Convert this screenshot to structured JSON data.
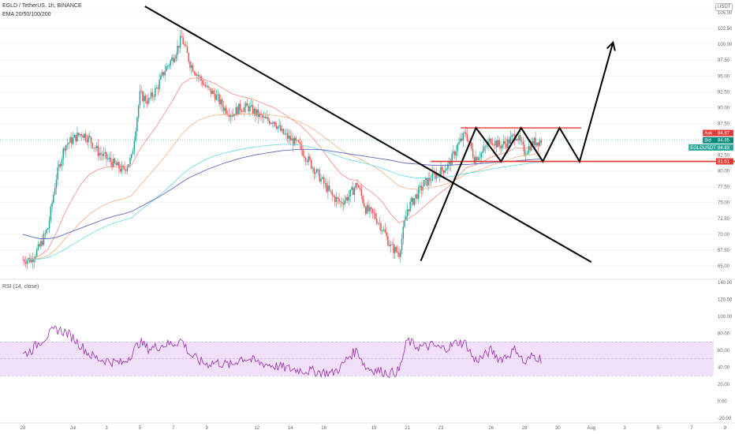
{
  "header": {
    "symbol_title": "EGLD / TetherUS, 1h, BINANCE",
    "ema_legend": "EMA 20/50/100/200",
    "currency_badge": "USDT",
    "rsi_legend": "RSI (14, close)"
  },
  "colors": {
    "up": "#26a69a",
    "down": "#ef5350",
    "ema20": "#f28b82",
    "ema50": "#f4b183",
    "ema100": "#66d9e8",
    "ema200": "#5c6bc0",
    "rsi": "#9c27b0",
    "rsi_band": "#f0e0fa",
    "trendline": "#000000",
    "support": "#e53935",
    "ask_label": "#e53935",
    "bid_label": "#00897b",
    "last_label": "#26a69a"
  },
  "chart_data": [
    {
      "type": "candlestick",
      "title": "EGLD / TetherUS, 1h, BINANCE",
      "x_labels": [
        "28",
        "Jul",
        "3",
        "5",
        "7",
        "9",
        "12",
        "14",
        "16",
        "19",
        "21",
        "23",
        "26",
        "28",
        "30",
        "Aug",
        "3",
        "5",
        "7",
        "9"
      ],
      "x_label_day_offsets": [
        0,
        3,
        5,
        7,
        9,
        11,
        14,
        16,
        18,
        21,
        23,
        25,
        28,
        30,
        32,
        34,
        36,
        38,
        40,
        42
      ],
      "ylim": [
        64,
        106
      ],
      "y_ticks": [
        105.0,
        102.5,
        100.0,
        97.5,
        95.0,
        92.5,
        90.0,
        87.5,
        85.0,
        82.5,
        80.0,
        77.5,
        75.0,
        72.5,
        70.0,
        67.5,
        65.0
      ],
      "price_path_day_offsets": [
        0,
        0.5,
        1,
        1.5,
        2,
        2.5,
        3,
        3.5,
        4,
        4.5,
        5,
        5.5,
        6,
        6.5,
        7,
        7.5,
        8,
        8.5,
        9,
        9.5,
        10,
        10.5,
        11,
        11.5,
        12,
        12.5,
        13,
        13.5,
        14,
        14.5,
        15,
        15.5,
        16,
        16.5,
        17,
        17.5,
        18,
        18.5,
        19,
        19.5,
        20,
        20.5,
        21,
        21.5,
        22,
        22.5,
        23,
        23.5,
        24,
        24.5,
        25,
        25.5,
        26,
        26.5,
        27,
        27.5,
        28,
        28.5,
        29,
        29.5,
        30,
        30.5,
        31
      ],
      "price_path": [
        66,
        66,
        68,
        71,
        79,
        84,
        85,
        86,
        85,
        83,
        82,
        81,
        80,
        82,
        92,
        91,
        93,
        96,
        98,
        101,
        97,
        95,
        93,
        92,
        90,
        89,
        90,
        90,
        89,
        88,
        88,
        86,
        85,
        84,
        82,
        80,
        78,
        76,
        75,
        76,
        78,
        74,
        73,
        71,
        68,
        67,
        74,
        76,
        78,
        79,
        80,
        81,
        84,
        86,
        82,
        83,
        85,
        84,
        84.5,
        85.8,
        83,
        84.5,
        84.83
      ],
      "ema": [
        {
          "name": "EMA 20",
          "values": [
            66,
            66.1,
            66.6,
            67.6,
            70.2,
            73.3,
            75.8,
            78,
            79.5,
            80.2,
            80.6,
            80.7,
            80.6,
            80.9,
            83.4,
            85.3,
            87.1,
            89.2,
            91.3,
            93.7,
            94.6,
            94.7,
            94.3,
            93.8,
            93,
            92.2,
            91.8,
            91.5,
            91.1,
            90.5,
            90,
            89.2,
            88.3,
            87.4,
            86.2,
            84.7,
            83,
            81.2,
            79.6,
            78.7,
            78.5,
            77.3,
            76.4,
            75.1,
            73.2,
            71.8,
            72.4,
            73.2,
            74.4,
            75.5,
            76.6,
            77.6,
            79,
            80.5,
            80.9,
            81.4,
            82.2,
            82.6,
            83,
            83.7,
            83.5,
            83.8,
            84
          ]
        },
        {
          "name": "EMA 50",
          "values": [
            66,
            66,
            66.2,
            66.6,
            67.7,
            69.2,
            70.6,
            72,
            73.2,
            74.1,
            74.8,
            75.3,
            75.6,
            76.1,
            77.7,
            79.2,
            80.7,
            82.3,
            84,
            85.8,
            87.1,
            88,
            88.5,
            88.8,
            88.9,
            88.9,
            88.9,
            89,
            89,
            88.9,
            88.8,
            88.6,
            88.3,
            87.8,
            87.2,
            86.4,
            85.4,
            84.4,
            83.4,
            82.6,
            82.1,
            81.4,
            80.7,
            79.8,
            78.7,
            77.6,
            77.2,
            77.1,
            77.2,
            77.4,
            77.7,
            78.1,
            78.7,
            79.5,
            79.9,
            80.3,
            80.9,
            81.3,
            81.7,
            82.2,
            82.4,
            82.6,
            82.8
          ]
        },
        {
          "name": "EMA 100",
          "values": [
            66,
            66,
            66.1,
            66.3,
            66.9,
            67.6,
            68.4,
            69.2,
            70,
            70.7,
            71.3,
            71.8,
            72.2,
            72.6,
            73.7,
            74.7,
            75.8,
            76.9,
            78.1,
            79.4,
            80.4,
            81.2,
            81.9,
            82.4,
            82.8,
            83.1,
            83.4,
            83.6,
            83.8,
            84,
            84.1,
            84.2,
            84.2,
            84.1,
            83.9,
            83.6,
            83.2,
            82.7,
            82.2,
            81.8,
            81.5,
            81.2,
            80.8,
            80.4,
            79.9,
            79.4,
            79.1,
            78.9,
            78.9,
            78.9,
            79,
            79.1,
            79.3,
            79.6,
            79.8,
            80,
            80.3,
            80.5,
            80.7,
            80.9,
            81.1,
            81.3,
            81.4
          ]
        },
        {
          "name": "EMA 200",
          "values": [
            70,
            69.6,
            69.3,
            69.3,
            69.5,
            70,
            70.5,
            71,
            71.5,
            72,
            72.5,
            72.9,
            73.2,
            73.6,
            74.3,
            75,
            75.7,
            76.5,
            77.3,
            78.2,
            79,
            79.6,
            80.2,
            80.7,
            81.2,
            81.6,
            82,
            82.3,
            82.6,
            82.8,
            83,
            83.2,
            83.3,
            83.4,
            83.4,
            83.4,
            83.3,
            83.1,
            82.9,
            82.7,
            82.5,
            82.3,
            82.1,
            81.9,
            81.7,
            81.4,
            81.2,
            81.1,
            81,
            80.9,
            80.9,
            80.9,
            81,
            81,
            81.1,
            81.2,
            81.3,
            81.4,
            81.5,
            81.6,
            81.7,
            81.8,
            81.9
          ]
        }
      ],
      "price_labels": [
        {
          "label": "Ask",
          "value": 84.87
        },
        {
          "label": "Bid",
          "value": 84.85
        },
        {
          "label": "EGLDUSDT",
          "value": 84.83
        },
        {
          "label": "",
          "value": 81.51
        }
      ],
      "value_texts": [
        "84.87",
        "84.85",
        "84.83",
        "81.51"
      ],
      "annotations": [
        {
          "type": "trendline",
          "from": [
            7.3,
            106
          ],
          "to": [
            34,
            65.6
          ]
        },
        {
          "type": "resistance-line",
          "from": [
            26.2,
            86.8
          ],
          "to": [
            33.4,
            86.8
          ]
        },
        {
          "type": "support-line",
          "from": [
            24.4,
            81.5
          ],
          "to": [
            43.5,
            81.5
          ]
        },
        {
          "type": "projection-path",
          "points": [
            [
              23.8,
              65.8
            ],
            [
              27.1,
              86.8
            ],
            [
              28.6,
              81.5
            ],
            [
              29.8,
              86.8
            ],
            [
              31.1,
              81.5
            ],
            [
              32.1,
              86.8
            ],
            [
              33.3,
              81.5
            ],
            [
              35.3,
              100.3
            ]
          ]
        }
      ]
    },
    {
      "type": "line",
      "title": "RSI (14, close)",
      "ylim": [
        -20,
        140
      ],
      "y_ticks": [
        140,
        120,
        100,
        80,
        60,
        40,
        20,
        0,
        -20
      ],
      "band": [
        30,
        70
      ],
      "midline": 50,
      "x_day_offsets": [
        0,
        0.5,
        1,
        1.5,
        2,
        2.5,
        3,
        3.5,
        4,
        4.5,
        5,
        5.5,
        6,
        6.5,
        7,
        7.5,
        8,
        8.5,
        9,
        9.5,
        10,
        10.5,
        11,
        11.5,
        12,
        12.5,
        13,
        13.5,
        14,
        14.5,
        15,
        15.5,
        16,
        16.5,
        17,
        17.5,
        18,
        18.5,
        19,
        19.5,
        20,
        20.5,
        21,
        21.5,
        22,
        22.5,
        23,
        23.5,
        24,
        24.5,
        25,
        25.5,
        26,
        26.5,
        27,
        27.5,
        28,
        28.5,
        29,
        29.5,
        30,
        30.5,
        31
      ],
      "values": [
        55,
        60,
        70,
        78,
        85,
        82,
        75,
        65,
        55,
        50,
        48,
        46,
        45,
        56,
        70,
        62,
        64,
        67,
        68,
        72,
        55,
        48,
        44,
        46,
        44,
        42,
        51,
        50,
        46,
        44,
        42,
        40,
        38,
        37,
        36,
        35,
        34,
        33,
        40,
        53,
        60,
        40,
        37,
        35,
        33,
        36,
        72,
        65,
        64,
        66,
        62,
        64,
        70,
        68,
        48,
        52,
        60,
        50,
        54,
        62,
        44,
        54,
        50
      ]
    }
  ],
  "rsi_tick_texts": [
    "140.00",
    "120.00",
    "100.00",
    "80.00",
    "60.00",
    "40.00",
    "20.00",
    "0.00",
    "-20.00"
  ]
}
